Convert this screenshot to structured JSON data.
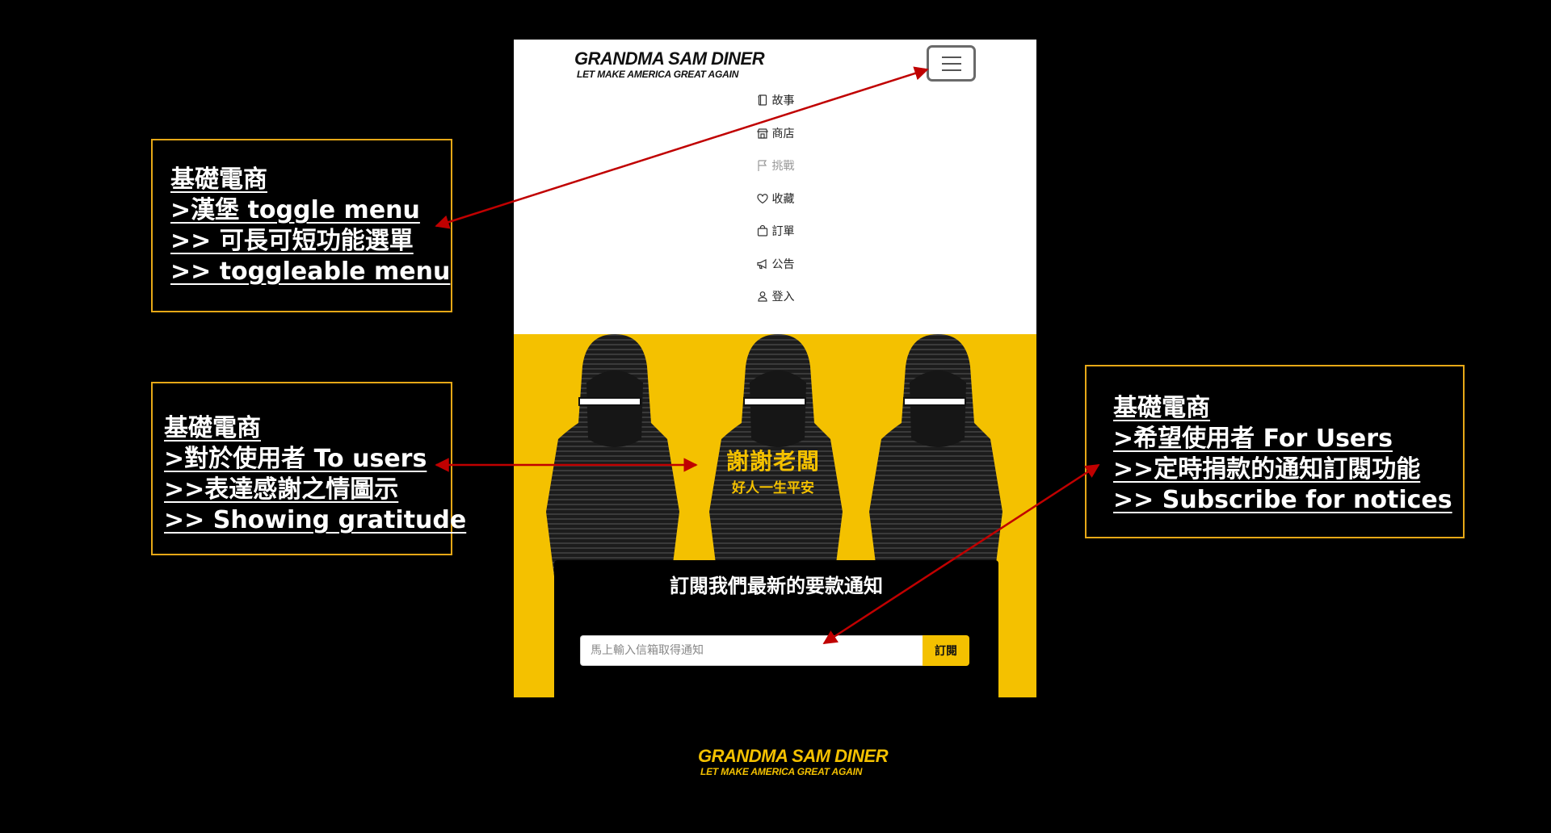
{
  "app": {
    "brand_title": "GRANDMA SAM DINER",
    "brand_tagline": "LET MAKE AMERICA GREAT AGAIN"
  },
  "nav": {
    "items": [
      {
        "label": "故事",
        "icon": "book-icon",
        "disabled": false
      },
      {
        "label": "商店",
        "icon": "store-icon",
        "disabled": false
      },
      {
        "label": "挑戰",
        "icon": "flag-icon",
        "disabled": true
      },
      {
        "label": "收藏",
        "icon": "heart-icon",
        "disabled": false
      },
      {
        "label": "訂單",
        "icon": "bag-icon",
        "disabled": false
      },
      {
        "label": "公告",
        "icon": "megaphone-icon",
        "disabled": false
      },
      {
        "label": "登入",
        "icon": "user-icon",
        "disabled": false
      }
    ]
  },
  "hero": {
    "title": "謝謝老闆",
    "subtitle": "好人一生平安"
  },
  "subscribe": {
    "title": "訂閱我們最新的要款通知",
    "placeholder": "馬上輸入信箱取得通知",
    "button_label": "訂閱"
  },
  "footer": {
    "brand_title": "GRANDMA SAM DINER",
    "brand_tagline": "LET MAKE AMERICA GREAT AGAIN"
  },
  "annotations": [
    {
      "lines": [
        "基礎電商",
        ">漢堡  toggle menu",
        ">> 可長可短功能選單",
        ">> toggleable menu"
      ]
    },
    {
      "lines": [
        "基礎電商",
        ">對於使用者 To users",
        ">>表達感謝之情圖示",
        ">> Showing gratitude"
      ]
    },
    {
      "lines": [
        "基礎電商",
        ">希望使用者 For Users",
        ">>定時捐款的通知訂閱功能",
        ">> Subscribe for notices"
      ]
    }
  ],
  "colors": {
    "accent": "#f4c100",
    "annotation_border": "#e6a817",
    "arrow": "#c00000",
    "background": "#000000"
  }
}
